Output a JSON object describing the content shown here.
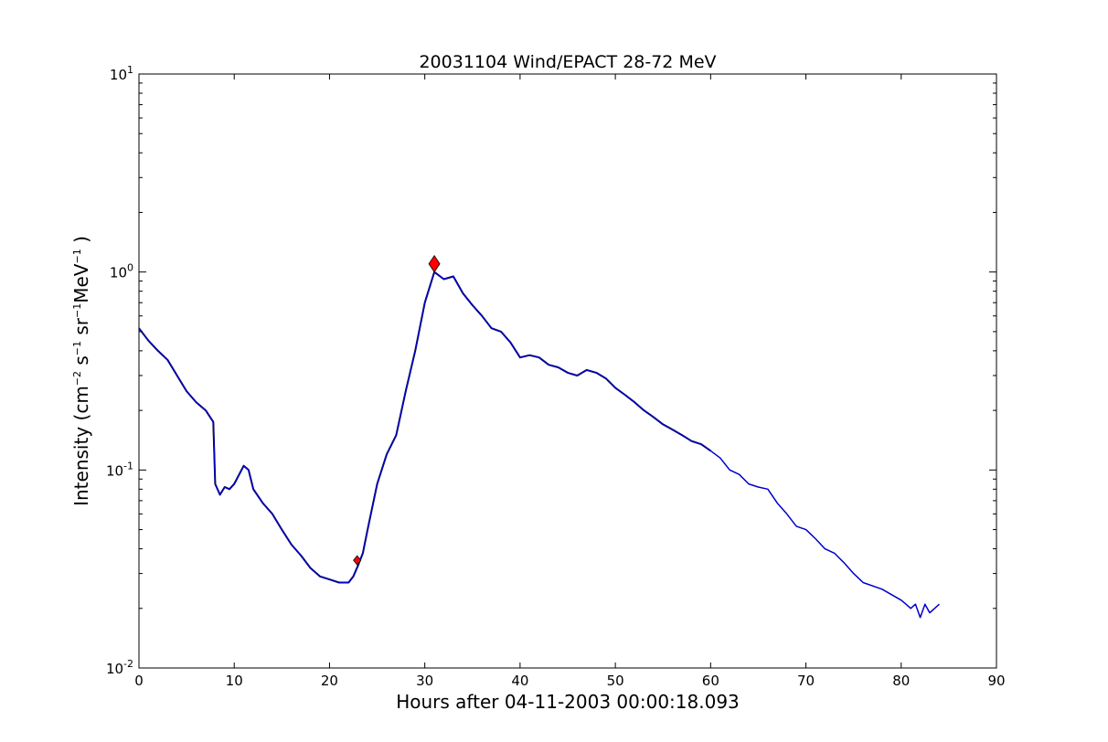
{
  "chart_data": {
    "type": "line",
    "title": "20031104 Wind/EPACT 28-72 MeV",
    "xlabel": "Hours after 04-11-2003 00:00:18.093",
    "ylabel": {
      "prefix": "Intensity (cm",
      "exp1": "−2",
      "s": " s",
      "exp2": "−1",
      "sr": " sr",
      "exp3": "−1",
      "mev": "MeV",
      "exp4": "−1",
      "suffix": " )"
    },
    "xlim": [
      0,
      90
    ],
    "ylim": [
      0.01,
      10
    ],
    "yscale": "log",
    "x_ticks": [
      "0",
      "10",
      "20",
      "30",
      "40",
      "50",
      "60",
      "70",
      "80",
      "90"
    ],
    "y_ticks": [
      {
        "base": "10",
        "exp": "-2",
        "value": 0.01
      },
      {
        "base": "10",
        "exp": "-1",
        "value": 0.1
      },
      {
        "base": "10",
        "exp": "0",
        "value": 1
      },
      {
        "base": "10",
        "exp": "1",
        "value": 10
      }
    ],
    "grid": false,
    "series": [
      {
        "color": "#000000",
        "role": "raw",
        "x": [
          0,
          1,
          2,
          3,
          4,
          5,
          6,
          7,
          7.8,
          8,
          8.5,
          9,
          9.5,
          10,
          11,
          11.5,
          12,
          13,
          14,
          15,
          16,
          17,
          18,
          19,
          20,
          21,
          22,
          22.5,
          23,
          23.5,
          24,
          25,
          26,
          27,
          28,
          29,
          30,
          31,
          32,
          33,
          34,
          35,
          36,
          37,
          38,
          39,
          40,
          41,
          42,
          43,
          44,
          45,
          46,
          47,
          48,
          49,
          50,
          51,
          52,
          53,
          54,
          55,
          56,
          57,
          58,
          59,
          60
        ],
        "y": [
          0.52,
          0.45,
          0.4,
          0.36,
          0.3,
          0.25,
          0.22,
          0.2,
          0.175,
          0.085,
          0.075,
          0.082,
          0.08,
          0.085,
          0.105,
          0.1,
          0.08,
          0.068,
          0.06,
          0.05,
          0.042,
          0.037,
          0.032,
          0.029,
          0.028,
          0.027,
          0.027,
          0.029,
          0.033,
          0.038,
          0.05,
          0.085,
          0.12,
          0.15,
          0.25,
          0.4,
          0.7,
          1.0,
          0.92,
          0.95,
          0.78,
          0.68,
          0.6,
          0.52,
          0.5,
          0.44,
          0.37,
          0.38,
          0.37,
          0.34,
          0.33,
          0.31,
          0.3,
          0.32,
          0.31,
          0.29,
          0.26,
          0.24,
          0.22,
          0.2,
          0.185,
          0.17,
          0.16,
          0.15,
          0.14,
          0.135,
          0.125
        ]
      },
      {
        "color": "#0000cc",
        "role": "smoothed",
        "x": [
          0,
          1,
          2,
          3,
          4,
          5,
          6,
          7,
          7.8,
          8,
          8.5,
          9,
          9.5,
          10,
          11,
          11.5,
          12,
          13,
          14,
          15,
          16,
          17,
          18,
          19,
          20,
          21,
          22,
          22.5,
          23,
          23.5,
          24,
          25,
          26,
          27,
          28,
          29,
          30,
          31,
          32,
          33,
          34,
          35,
          36,
          37,
          38,
          39,
          40,
          41,
          42,
          43,
          44,
          45,
          46,
          47,
          48,
          49,
          50,
          51,
          52,
          53,
          54,
          55,
          56,
          57,
          58,
          59,
          60,
          61,
          62,
          63,
          64,
          65,
          66,
          67,
          68,
          69,
          70,
          71,
          72,
          73,
          74,
          75,
          76,
          78,
          80,
          80.5,
          81,
          81.5,
          82,
          82.5,
          83,
          84
        ],
        "y": [
          0.52,
          0.45,
          0.4,
          0.36,
          0.3,
          0.25,
          0.22,
          0.2,
          0.175,
          0.085,
          0.075,
          0.082,
          0.08,
          0.085,
          0.105,
          0.1,
          0.08,
          0.068,
          0.06,
          0.05,
          0.042,
          0.037,
          0.032,
          0.029,
          0.028,
          0.027,
          0.027,
          0.029,
          0.033,
          0.038,
          0.05,
          0.085,
          0.12,
          0.15,
          0.25,
          0.4,
          0.7,
          1.0,
          0.92,
          0.95,
          0.78,
          0.68,
          0.6,
          0.52,
          0.5,
          0.44,
          0.37,
          0.38,
          0.37,
          0.34,
          0.33,
          0.31,
          0.3,
          0.32,
          0.31,
          0.29,
          0.26,
          0.24,
          0.22,
          0.2,
          0.185,
          0.17,
          0.16,
          0.15,
          0.14,
          0.135,
          0.125,
          0.115,
          0.1,
          0.095,
          0.085,
          0.082,
          0.08,
          0.068,
          0.06,
          0.052,
          0.05,
          0.045,
          0.04,
          0.038,
          0.034,
          0.03,
          0.027,
          0.025,
          0.022,
          0.021,
          0.02,
          0.021,
          0.018,
          0.021,
          0.019,
          0.021
        ]
      }
    ],
    "markers": [
      {
        "x": 22.9,
        "y": 0.035,
        "color": "#ff0000",
        "shape": "diamond",
        "size": "small"
      },
      {
        "x": 31.0,
        "y": 1.1,
        "color": "#ff0000",
        "shape": "diamond",
        "size": "large"
      }
    ]
  }
}
